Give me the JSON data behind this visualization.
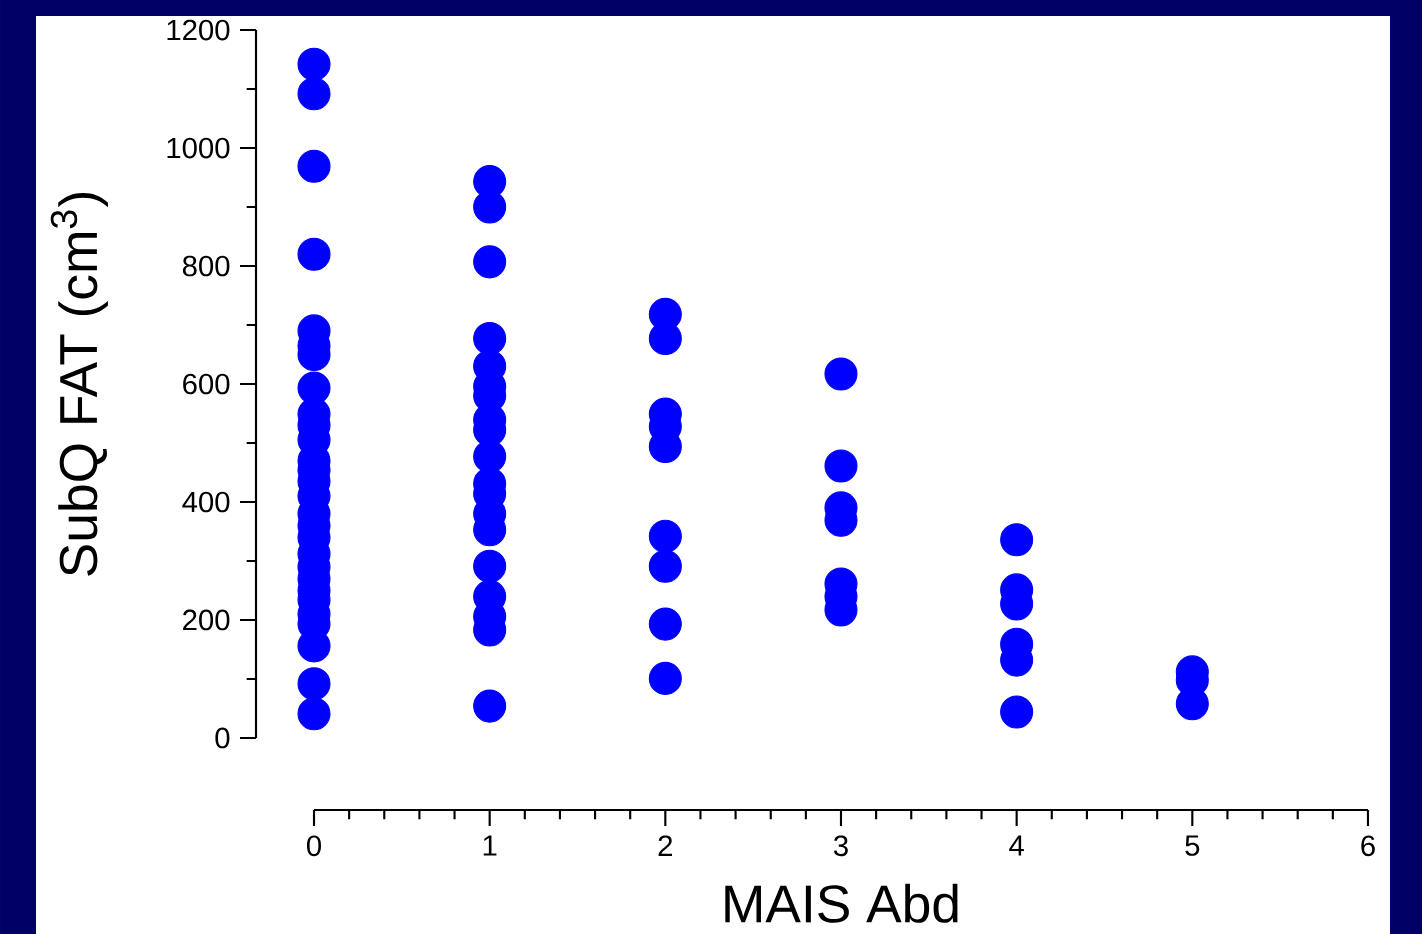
{
  "chart_data": {
    "type": "scatter",
    "xlabel": "MAIS Abd",
    "ylabel": "SubQ FAT (cm$^{3}$)",
    "xlim": [
      0,
      6
    ],
    "ylim": [
      0,
      1200
    ],
    "xticks": [
      0,
      1,
      2,
      3,
      4,
      5,
      6
    ],
    "yticks": [
      0,
      200,
      400,
      600,
      800,
      1000,
      1200
    ],
    "marker": "circle",
    "grid": false,
    "series": [
      {
        "color": "#0000ff",
        "x": [
          0,
          0,
          0,
          0,
          0,
          0,
          0,
          0,
          0,
          0,
          0,
          0,
          0,
          0,
          0,
          0,
          0,
          0,
          0,
          0,
          0,
          0,
          0,
          0,
          0,
          0,
          0,
          0,
          1,
          1,
          1,
          1,
          1,
          1,
          1,
          1,
          1,
          1,
          1,
          1,
          1,
          1,
          1,
          1,
          1,
          1,
          1,
          2,
          2,
          2,
          2,
          2,
          2,
          2,
          2,
          2,
          3,
          3,
          3,
          3,
          3,
          3,
          3,
          4,
          4,
          4,
          4,
          4,
          4,
          5,
          5,
          5
        ],
        "values": [
          1142,
          1092,
          969,
          820,
          690,
          665,
          650,
          593,
          549,
          530,
          505,
          470,
          454,
          435,
          410,
          380,
          360,
          340,
          312,
          290,
          270,
          250,
          234,
          210,
          193,
          156,
          92,
          41,
          943,
          900,
          807,
          677,
          630,
          596,
          580,
          539,
          522,
          477,
          431,
          414,
          380,
          353,
          291,
          240,
          206,
          183,
          54,
          718,
          677,
          549,
          528,
          494,
          342,
          291,
          193,
          101,
          617,
          461,
          390,
          369,
          261,
          240,
          217,
          336,
          251,
          227,
          159,
          132,
          44,
          112,
          98,
          58
        ]
      }
    ]
  }
}
